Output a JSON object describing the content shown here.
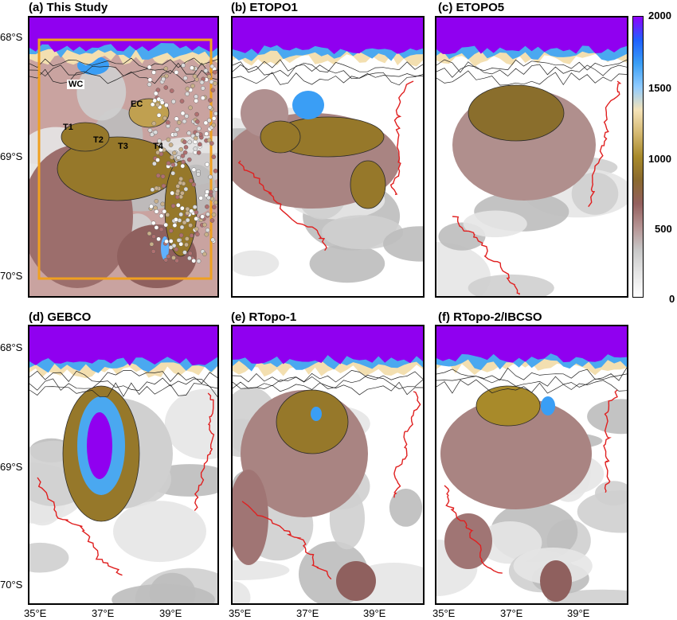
{
  "panels": [
    {
      "id": "a",
      "title": "(a) This Study"
    },
    {
      "id": "b",
      "title": "(b) ETOPO1"
    },
    {
      "id": "c",
      "title": "(c) ETOPO5"
    },
    {
      "id": "d",
      "title": "(d) GEBCO"
    },
    {
      "id": "e",
      "title": "(e) RTopo-1"
    },
    {
      "id": "f",
      "title": "(f) RTopo-2/IBCSO"
    }
  ],
  "axes": {
    "lat_ticks": [
      "68°S",
      "69°S",
      "70°S"
    ],
    "lon_ticks": [
      "35°E",
      "37°E",
      "39°E"
    ]
  },
  "region_labels": [
    "WC",
    "EC",
    "T1",
    "T2",
    "T3",
    "T4"
  ],
  "colorbar": {
    "ticks": [
      "2000",
      "1500",
      "1000",
      "500",
      "0"
    ],
    "colors": [
      "#ffffff",
      "#e6e6e6",
      "#c8c8c8",
      "#b59393",
      "#94605e",
      "#8a6a2e",
      "#a88a2a",
      "#d4b870",
      "#f5e3b8",
      "#8fcbff",
      "#3a9ef5",
      "#2060ff",
      "#8f00ff"
    ]
  },
  "colors": {
    "deep": "#9000f0",
    "frame": "#f0a020",
    "coast": "#e02020"
  }
}
